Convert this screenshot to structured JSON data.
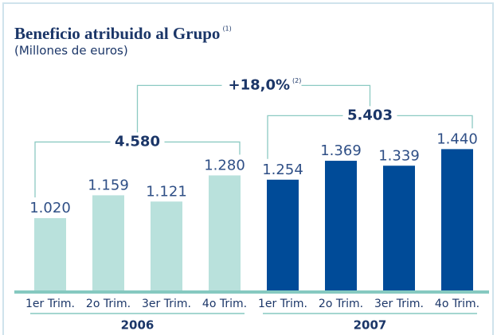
{
  "chart_data": {
    "type": "bar",
    "title": "Beneficio atribuido al Grupo",
    "title_note": "(1)",
    "subtitle": "(Millones de euros)",
    "categories": [
      "1er Trim.",
      "2o Trim.",
      "3er Trim.",
      "4o Trim."
    ],
    "series": [
      {
        "name": "2006",
        "color": "#b9e1dc",
        "values": [
          1020,
          1159,
          1121,
          1280
        ],
        "value_labels": [
          "1.020",
          "1.159",
          "1.121",
          "1.280"
        ],
        "total": 4580,
        "total_label": "4.580"
      },
      {
        "name": "2007",
        "color": "#004b98",
        "values": [
          1254,
          1369,
          1339,
          1440
        ],
        "value_labels": [
          "1.254",
          "1.369",
          "1.339",
          "1.440"
        ],
        "total": 5403,
        "total_label": "5.403"
      }
    ],
    "growth": {
      "value": 18.0,
      "label": "+18,0%",
      "note": "(2)"
    },
    "ylim": [
      580,
      1500
    ]
  }
}
